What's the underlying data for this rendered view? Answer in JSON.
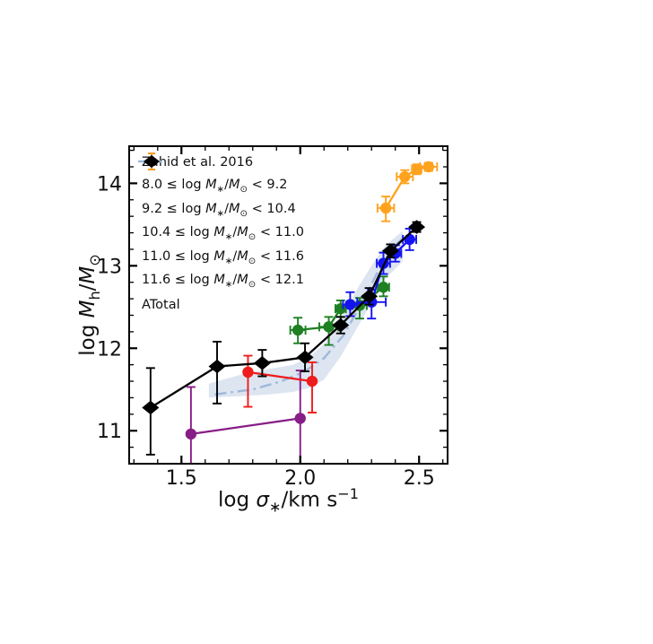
{
  "figure": {
    "background": "#ffffff"
  },
  "chart_data": {
    "type": "scatter",
    "title": "",
    "xlabel": "log σ_{∗}/km s^{−1}",
    "ylabel": "log M_{h}/M_{⊙}",
    "xlim": [
      1.28,
      2.62
    ],
    "ylim": [
      10.6,
      14.45
    ],
    "x_major_ticks": [
      1.5,
      2.0,
      2.5
    ],
    "x_tick_labels": [
      "1.5",
      "2.0",
      "2.5"
    ],
    "x_minor_step": 0.1,
    "y_major_ticks": [
      11,
      12,
      13,
      14
    ],
    "y_tick_labels": [
      "11",
      "12",
      "13",
      "14"
    ],
    "y_minor_step": 0.2,
    "grid": false,
    "legend_position": "upper-left",
    "band": {
      "name": "Zahid et al. 2016",
      "fill_color": "#b3c6e0",
      "fill_opacity": 0.45,
      "line_color": "#9db8da",
      "line_style": "dash-dot",
      "upper": [
        [
          1.615,
          11.57
        ],
        [
          1.75,
          11.68
        ],
        [
          1.87,
          11.75
        ],
        [
          1.97,
          11.8
        ],
        [
          2.04,
          11.9
        ],
        [
          2.1,
          12.05
        ],
        [
          2.17,
          12.35
        ],
        [
          2.24,
          12.72
        ],
        [
          2.3,
          13.0
        ],
        [
          2.36,
          13.25
        ],
        [
          2.43,
          13.42
        ]
      ],
      "lower": [
        [
          1.615,
          11.4
        ],
        [
          1.75,
          11.42
        ],
        [
          1.87,
          11.44
        ],
        [
          1.97,
          11.47
        ],
        [
          2.04,
          11.52
        ],
        [
          2.1,
          11.62
        ],
        [
          2.17,
          11.9
        ],
        [
          2.24,
          12.25
        ],
        [
          2.3,
          12.55
        ],
        [
          2.36,
          12.85
        ],
        [
          2.43,
          13.05
        ]
      ],
      "line": [
        [
          1.64,
          11.44
        ],
        [
          1.8,
          11.5
        ],
        [
          1.92,
          11.6
        ],
        [
          2.02,
          11.72
        ],
        [
          2.1,
          11.88
        ],
        [
          2.18,
          12.15
        ],
        [
          2.26,
          12.55
        ],
        [
          2.33,
          12.95
        ],
        [
          2.4,
          13.25
        ],
        [
          2.43,
          13.33
        ]
      ]
    },
    "series": [
      {
        "name": "8.0 ≤ log M_{∗}/M_{⊙} < 9.2",
        "color": "#871d87",
        "marker": "circle",
        "points": [
          {
            "x": 1.54,
            "y": 10.96,
            "yhi": 0.57,
            "ylo": 0.9,
            "xerr": 0
          },
          {
            "x": 2.0,
            "y": 11.15,
            "yhi": 0.58,
            "ylo": 0.9,
            "xerr": 0
          }
        ]
      },
      {
        "name": "9.2 ≤ log M_{∗}/M_{⊙} < 10.4",
        "color": "#ee1c1c",
        "marker": "circle",
        "points": [
          {
            "x": 1.78,
            "y": 11.71,
            "yhi": 0.2,
            "ylo": 0.42,
            "xerr": 0
          },
          {
            "x": 2.05,
            "y": 11.6,
            "yhi": 0.23,
            "ylo": 0.38,
            "xerr": 0
          }
        ]
      },
      {
        "name": "10.4 ≤ log M_{∗}/M_{⊙} < 11.0",
        "color": "#1e8022",
        "marker": "circle",
        "points": [
          {
            "x": 1.99,
            "y": 12.22,
            "yhi": 0.15,
            "ylo": 0.16,
            "xerr": 0.032
          },
          {
            "x": 2.12,
            "y": 12.26,
            "yhi": 0.12,
            "ylo": 0.22,
            "xerr": 0.04
          },
          {
            "x": 2.17,
            "y": 12.48,
            "yhi": 0.1,
            "ylo": 0.1,
            "xerr": 0.022
          },
          {
            "x": 2.25,
            "y": 12.52,
            "yhi": 0.09,
            "ylo": 0.16,
            "xerr": 0.03
          },
          {
            "x": 2.35,
            "y": 12.74,
            "yhi": 0.13,
            "ylo": 0.11,
            "xerr": 0.024
          }
        ]
      },
      {
        "name": "11.0 ≤ log M_{∗}/M_{⊙} < 11.6",
        "color": "#1414f0",
        "marker": "circle",
        "points": [
          {
            "x": 2.21,
            "y": 12.53,
            "yhi": 0.15,
            "ylo": 0.14,
            "xerr": 0.03
          },
          {
            "x": 2.3,
            "y": 12.56,
            "yhi": 0.15,
            "ylo": 0.2,
            "xerr": 0.06
          },
          {
            "x": 2.35,
            "y": 13.03,
            "yhi": 0.13,
            "ylo": 0.13,
            "xerr": 0.028
          },
          {
            "x": 2.4,
            "y": 13.15,
            "yhi": 0.1,
            "ylo": 0.1,
            "xerr": 0.025
          },
          {
            "x": 2.46,
            "y": 13.32,
            "yhi": 0.13,
            "ylo": 0.13,
            "xerr": 0.028
          }
        ]
      },
      {
        "name": "11.6 ≤ log M_{∗}/M_{⊙} < 12.1",
        "color": "#ffa21e",
        "marker": "circle",
        "points": [
          {
            "x": 2.36,
            "y": 13.7,
            "yhi": 0.14,
            "ylo": 0.16,
            "xerr": 0.035
          },
          {
            "x": 2.44,
            "y": 14.08,
            "yhi": 0.08,
            "ylo": 0.08,
            "xerr": 0.034
          },
          {
            "x": 2.49,
            "y": 14.17,
            "yhi": 0.06,
            "ylo": 0.06,
            "xerr": 0.02
          },
          {
            "x": 2.54,
            "y": 14.2,
            "yhi": 0.05,
            "ylo": 0.05,
            "xerr": 0.036
          }
        ]
      },
      {
        "name": "ATotal",
        "color": "#000000",
        "marker": "diamond",
        "points": [
          {
            "x": 1.37,
            "y": 11.28,
            "yhi": 0.48,
            "ylo": 0.57,
            "xerr": 0
          },
          {
            "x": 1.65,
            "y": 11.78,
            "yhi": 0.3,
            "ylo": 0.45,
            "xerr": 0
          },
          {
            "x": 1.84,
            "y": 11.82,
            "yhi": 0.16,
            "ylo": 0.16,
            "xerr": 0
          },
          {
            "x": 2.02,
            "y": 11.89,
            "yhi": 0.17,
            "ylo": 0.17,
            "xerr": 0
          },
          {
            "x": 2.17,
            "y": 12.28,
            "yhi": 0.1,
            "ylo": 0.1,
            "xerr": 0
          },
          {
            "x": 2.29,
            "y": 12.63,
            "yhi": 0.1,
            "ylo": 0.1,
            "xerr": 0
          },
          {
            "x": 2.38,
            "y": 13.18,
            "yhi": 0.08,
            "ylo": 0.08,
            "xerr": 0
          },
          {
            "x": 2.49,
            "y": 13.47,
            "yhi": 0.06,
            "ylo": 0.06,
            "xerr": 0
          }
        ]
      }
    ]
  }
}
